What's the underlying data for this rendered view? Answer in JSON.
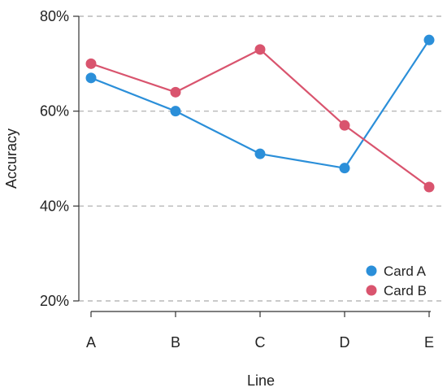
{
  "chart_data": {
    "type": "line",
    "xlabel": "Line",
    "ylabel": "Accuracy",
    "categories": [
      "A",
      "B",
      "C",
      "D",
      "E"
    ],
    "y_ticks": [
      20,
      40,
      60,
      80
    ],
    "y_tick_labels": [
      "20%",
      "40%",
      "60%",
      "80%"
    ],
    "ylim": [
      18,
      82
    ],
    "grid": "horizontal dashed",
    "legend_position": "bottom-right",
    "series": [
      {
        "name": "Card A",
        "color": "#2B8FD9",
        "values": [
          67,
          60,
          51,
          48,
          75
        ]
      },
      {
        "name": "Card B",
        "color": "#D9546E",
        "values": [
          70,
          64,
          73,
          57,
          44
        ]
      }
    ]
  }
}
